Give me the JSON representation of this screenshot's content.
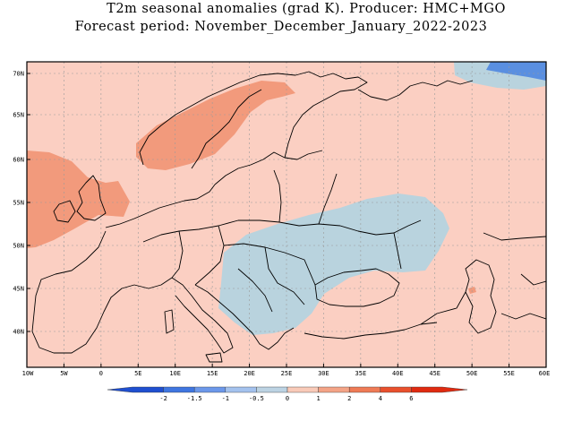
{
  "title": {
    "line1": "T2m seasonal anomalies (grad K). Producer: HMC+MGO",
    "line2": "Forecast period: November_December_January_2022-2023"
  },
  "axes": {
    "lat_labels": [
      "70N",
      "65N",
      "60N",
      "55N",
      "50N",
      "45N",
      "40N"
    ],
    "lon_labels": [
      "10W",
      "5W",
      "0",
      "5E",
      "10E",
      "15E",
      "20E",
      "25E",
      "30E",
      "35E",
      "40E",
      "45E",
      "50E",
      "55E",
      "60E"
    ]
  },
  "legend": {
    "labels": [
      "-2",
      "-1.5",
      "-1",
      "-0.5",
      "0",
      "1",
      "2",
      "4",
      "6"
    ],
    "colors": [
      "#1f4fd0",
      "#3f76e0",
      "#6c98ea",
      "#a4c2ee",
      "#bcd3e3",
      "#f9cab8",
      "#f4a487",
      "#ef7b56",
      "#e9502d",
      "#e02a10"
    ]
  },
  "colors": {
    "background_anomaly": "#fbcfc2",
    "warm_anomaly": "#f29a7c",
    "cool_anomaly": "#b9d3de",
    "strong_cool": "#5a8fe0"
  }
}
